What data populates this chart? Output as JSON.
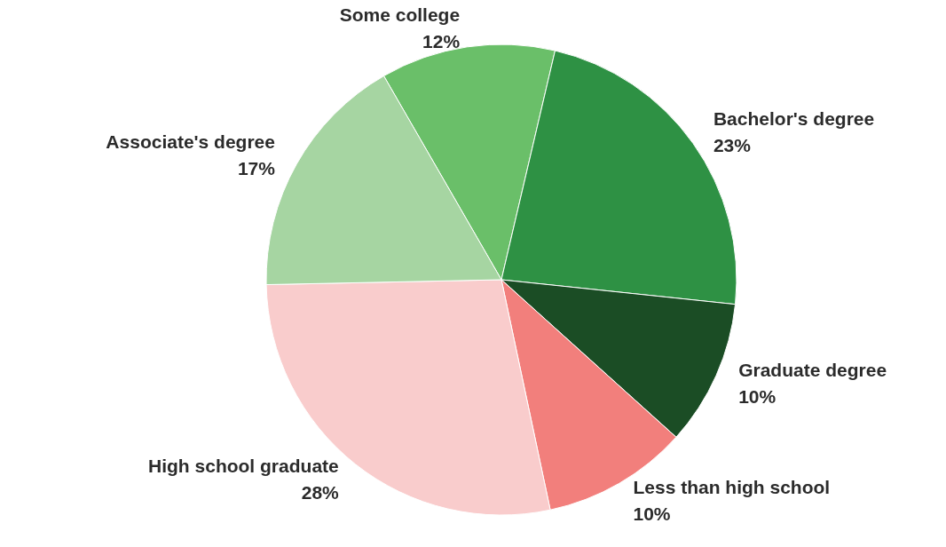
{
  "chart_data": {
    "type": "pie",
    "categories": [
      "Some college",
      "Bachelor's degree",
      "Graduate degree",
      "Less than high school",
      "High school graduate",
      "Associate's degree"
    ],
    "values": [
      12,
      23,
      10,
      10,
      28,
      17
    ],
    "value_labels": [
      "12%",
      "23%",
      "10%",
      "10%",
      "28%",
      "17%"
    ],
    "colors": [
      "#6abf69",
      "#2e9144",
      "#1b4d25",
      "#f27f7c",
      "#f9cccc",
      "#a6d5a2"
    ]
  }
}
